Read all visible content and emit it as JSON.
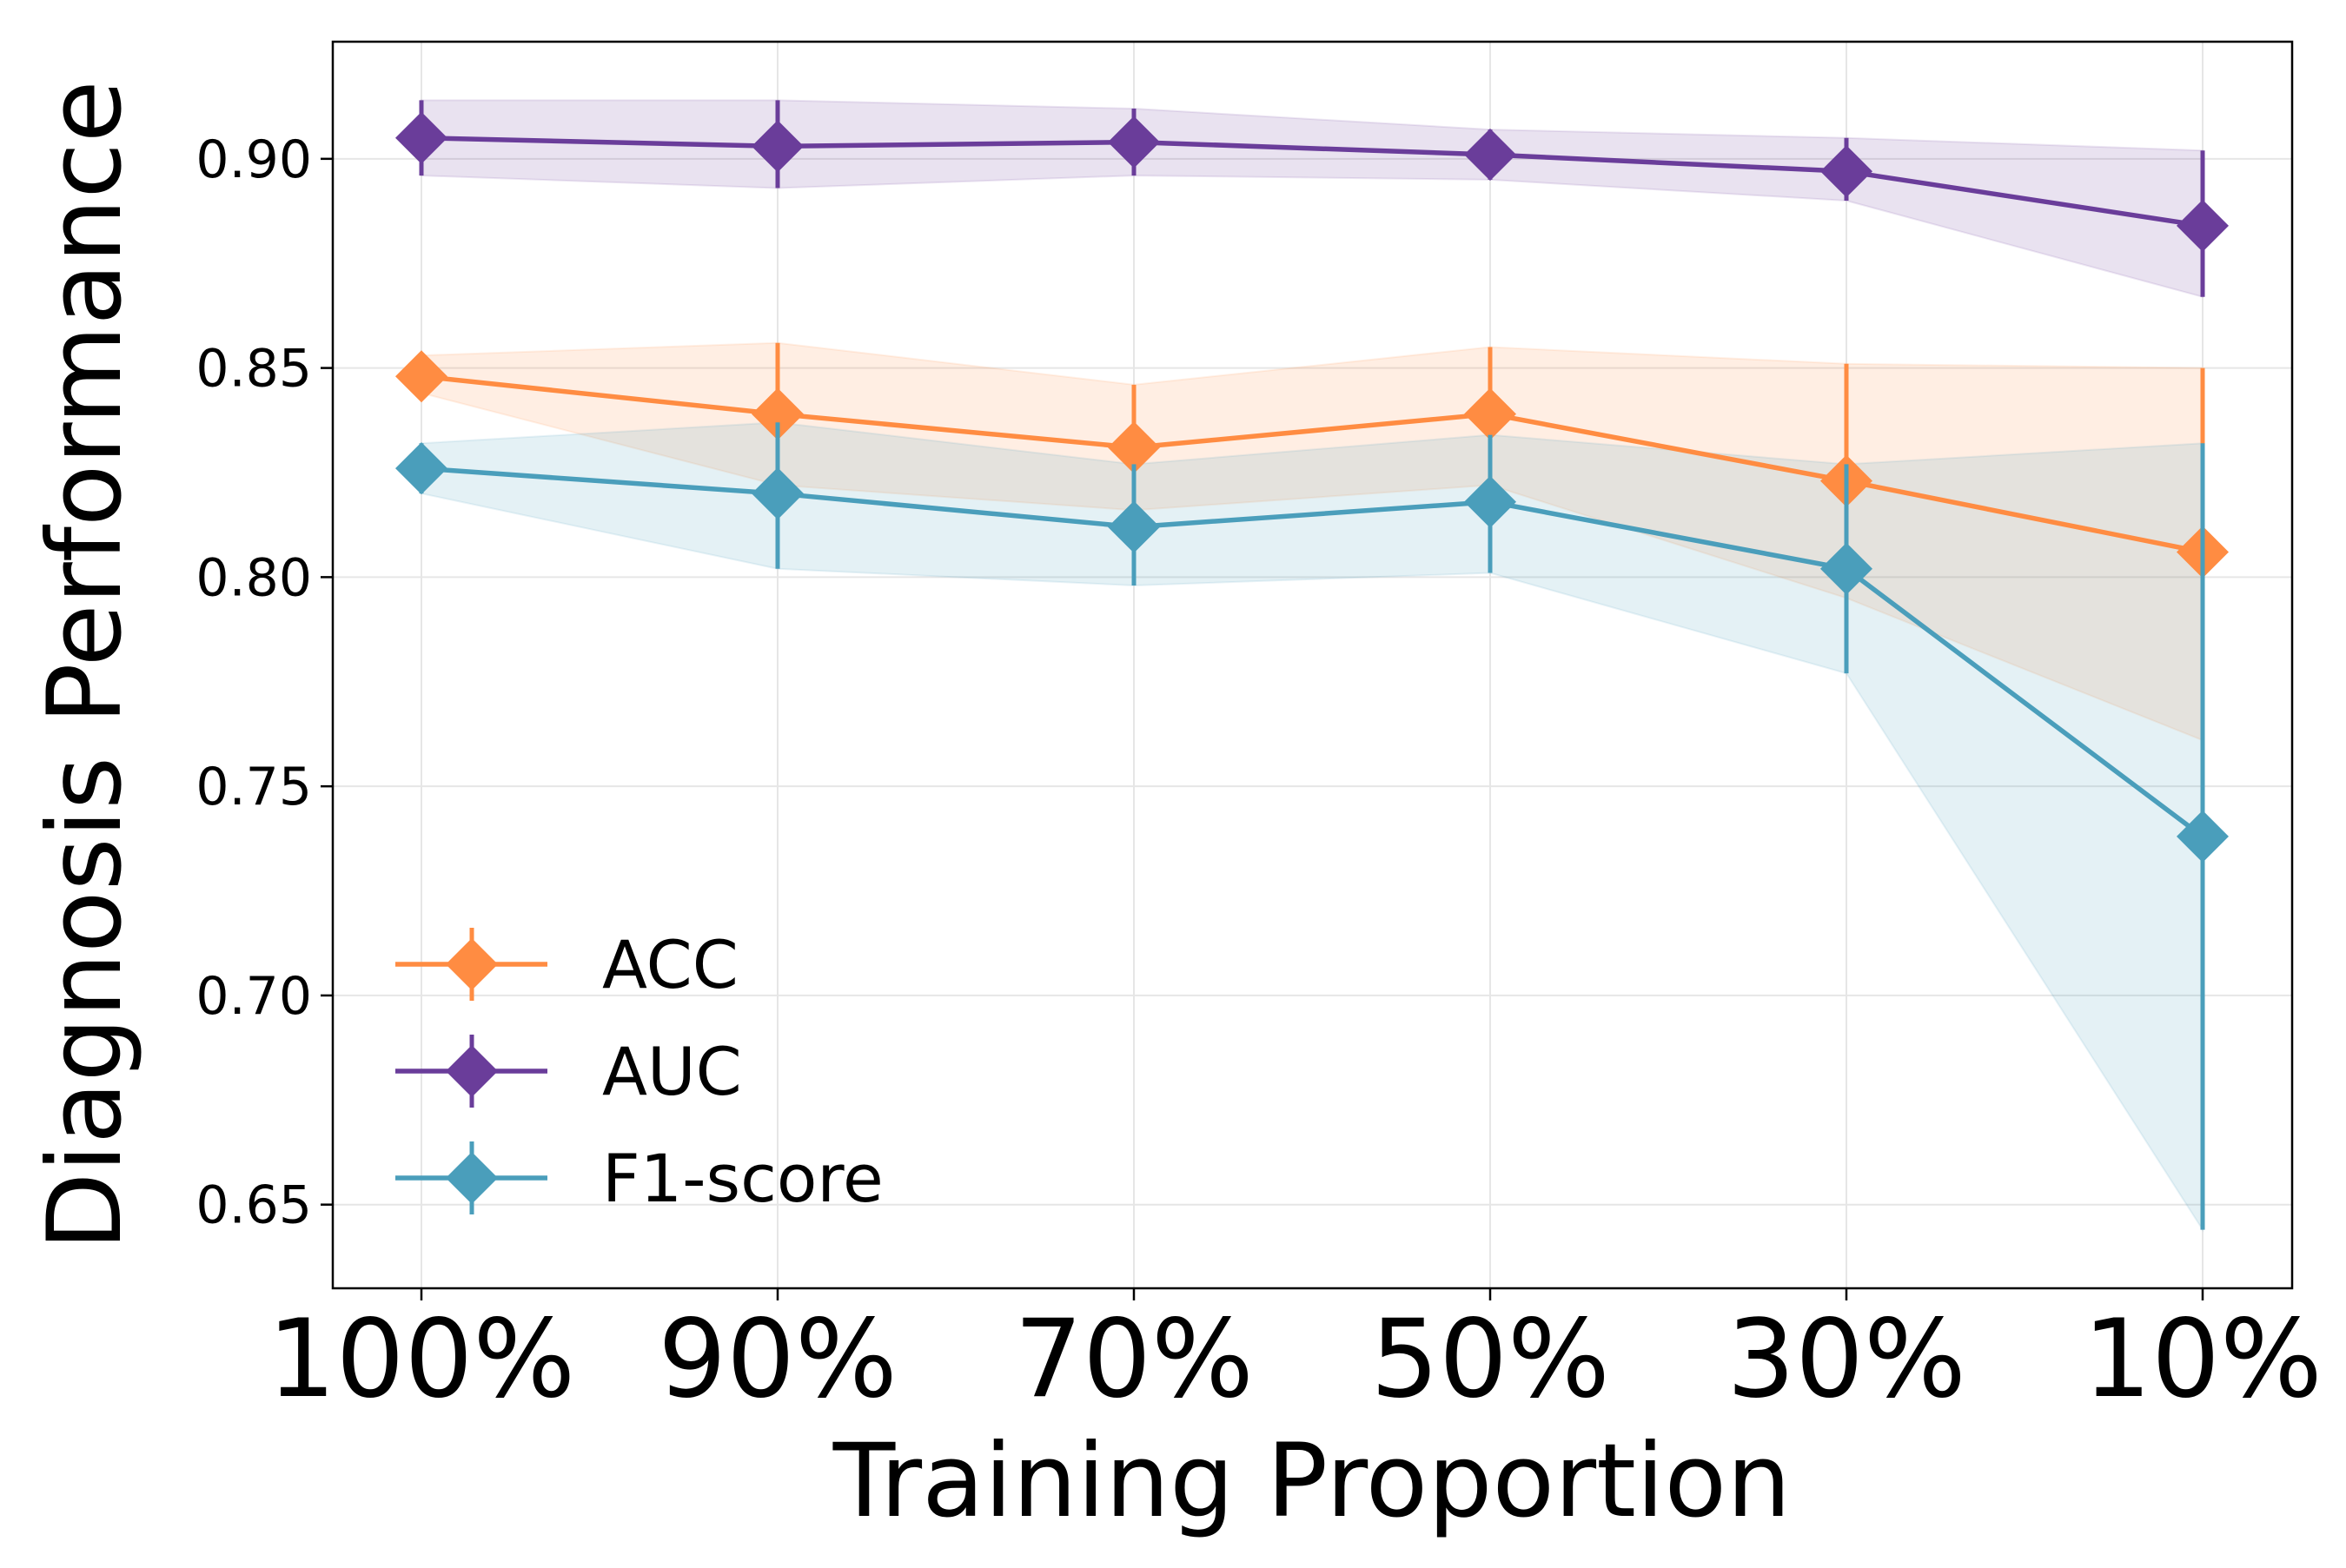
{
  "chart_data": {
    "type": "line",
    "title": "",
    "xlabel": "Training Proportion",
    "ylabel": "Diagnosis Performance",
    "categories": [
      "100%",
      "90%",
      "70%",
      "50%",
      "30%",
      "10%"
    ],
    "ylim": [
      0.63,
      0.928
    ],
    "yticks": [
      0.65,
      0.7,
      0.75,
      0.8,
      0.85,
      0.9
    ],
    "ytick_labels": [
      "0.65",
      "0.70",
      "0.75",
      "0.80",
      "0.85",
      "0.90"
    ],
    "grid": true,
    "legend_position": "lower-left",
    "series": [
      {
        "name": "ACC",
        "color": "#ff8c42",
        "values": [
          0.848,
          0.839,
          0.831,
          0.839,
          0.823,
          0.806
        ],
        "error_low": [
          0.844,
          0.822,
          0.816,
          0.822,
          0.795,
          0.761
        ],
        "error_high": [
          0.853,
          0.856,
          0.846,
          0.855,
          0.851,
          0.85
        ]
      },
      {
        "name": "AUC",
        "color": "#6a3d9a",
        "values": [
          0.905,
          0.903,
          0.904,
          0.901,
          0.897,
          0.884
        ],
        "error_low": [
          0.896,
          0.893,
          0.896,
          0.895,
          0.89,
          0.867
        ],
        "error_high": [
          0.914,
          0.914,
          0.912,
          0.907,
          0.905,
          0.902
        ]
      },
      {
        "name": "F1-score",
        "color": "#4a9ebb",
        "values": [
          0.826,
          0.82,
          0.812,
          0.818,
          0.802,
          0.738
        ],
        "error_low": [
          0.82,
          0.802,
          0.798,
          0.801,
          0.777,
          0.644
        ],
        "error_high": [
          0.832,
          0.837,
          0.827,
          0.834,
          0.827,
          0.832
        ]
      }
    ]
  }
}
